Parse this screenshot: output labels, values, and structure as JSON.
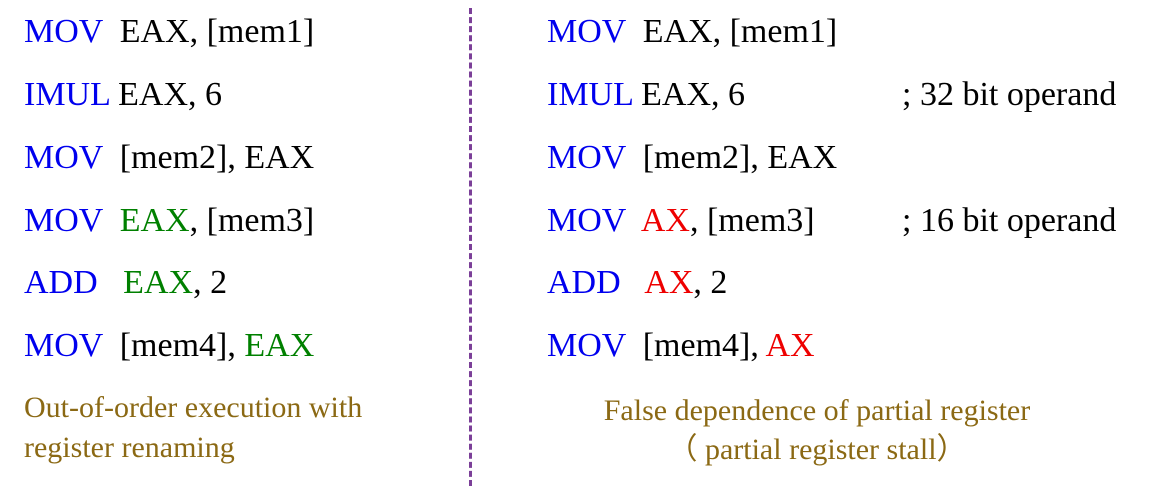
{
  "left": {
    "lines": [
      [
        {
          "t": "MOV",
          "c": "op"
        },
        {
          "t": "  EAX, [mem1]",
          "c": "plain"
        }
      ],
      [
        {
          "t": "IMUL",
          "c": "op"
        },
        {
          "t": " EAX, 6",
          "c": "plain"
        }
      ],
      [
        {
          "t": "MOV",
          "c": "op"
        },
        {
          "t": "  [mem2], EAX",
          "c": "plain"
        }
      ],
      [
        {
          "t": "MOV",
          "c": "op"
        },
        {
          "t": "  ",
          "c": "plain"
        },
        {
          "t": "EAX",
          "c": "green"
        },
        {
          "t": ", [mem3]",
          "c": "plain"
        }
      ],
      [
        {
          "t": "ADD",
          "c": "op"
        },
        {
          "t": "   ",
          "c": "plain"
        },
        {
          "t": "EAX",
          "c": "green"
        },
        {
          "t": ", 2",
          "c": "plain"
        }
      ],
      [
        {
          "t": "MOV",
          "c": "op"
        },
        {
          "t": "  [mem4], ",
          "c": "plain"
        },
        {
          "t": "EAX",
          "c": "green"
        }
      ]
    ],
    "caption": [
      "Out-of-order execution with",
      "register renaming"
    ]
  },
  "right": {
    "lines": [
      [
        {
          "t": "MOV",
          "c": "op"
        },
        {
          "t": "  EAX, [mem1]",
          "c": "plain"
        }
      ],
      [
        {
          "t": "IMUL",
          "c": "op"
        },
        {
          "t": " EAX, 6",
          "c": "plain"
        }
      ],
      [
        {
          "t": "MOV",
          "c": "op"
        },
        {
          "t": "  [mem2], EAX",
          "c": "plain"
        }
      ],
      [
        {
          "t": "MOV",
          "c": "op"
        },
        {
          "t": "  ",
          "c": "plain"
        },
        {
          "t": "AX",
          "c": "red"
        },
        {
          "t": ", [mem3]",
          "c": "plain"
        }
      ],
      [
        {
          "t": "ADD",
          "c": "op"
        },
        {
          "t": "   ",
          "c": "plain"
        },
        {
          "t": "AX",
          "c": "red"
        },
        {
          "t": ", 2",
          "c": "plain"
        }
      ],
      [
        {
          "t": "MOV",
          "c": "op"
        },
        {
          "t": "  [mem4], ",
          "c": "plain"
        },
        {
          "t": "AX",
          "c": "red"
        }
      ]
    ],
    "comments": {
      "line2": "; 32 bit operand",
      "line4": "; 16 bit operand"
    },
    "caption": [
      "False dependence of partial register",
      "（ partial register stall）"
    ]
  },
  "colors": {
    "opcode": "#0000ee",
    "operand": "#000000",
    "renamed_register": "#008000",
    "partial_register": "#ee0000",
    "caption": "#8b6914",
    "divider": "#7b3f98"
  }
}
